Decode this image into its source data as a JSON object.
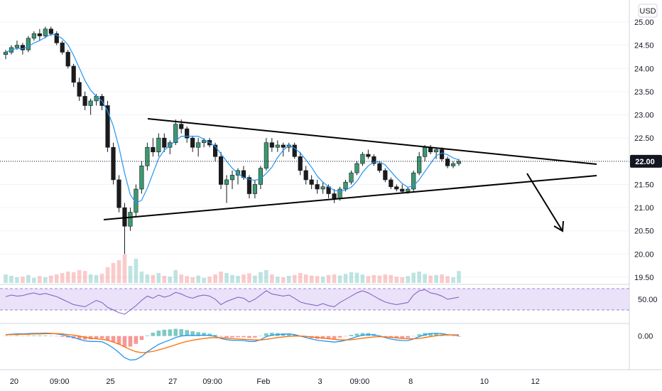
{
  "currency_label": "USD",
  "colors": {
    "up": "#26a69a",
    "down": "#ef5350",
    "sma": "#2196f3",
    "rsi_line": "#7e57c2",
    "rsi_band": "#e1d5f5",
    "macd_line": "#2196f3",
    "signal_line": "#ff6d00",
    "hist_up": "#26a69a",
    "hist_down": "#ef5350",
    "grid": "#f0f3fa",
    "axis": "#d1d4dc",
    "trendline": "#000000",
    "price_tag_bg": "#131722"
  },
  "chart_data": [
    {
      "type": "candlestick",
      "title": "",
      "price_axis_ticks": [
        "25.00",
        "24.50",
        "24.00",
        "23.50",
        "23.00",
        "22.50",
        "22.00",
        "21.50",
        "21.00",
        "20.50",
        "20.00",
        "19.50"
      ],
      "ylim": [
        19.5,
        25.0
      ],
      "time_axis_labels": [
        "20",
        "09:00",
        "25",
        "27",
        "09:00",
        "Feb",
        "3",
        "09:00",
        "8",
        "10",
        "12"
      ],
      "last_price": "22.00",
      "candles": [
        [
          24.3,
          24.4,
          24.2,
          24.35
        ],
        [
          24.35,
          24.5,
          24.3,
          24.45
        ],
        [
          24.45,
          24.6,
          24.4,
          24.5
        ],
        [
          24.5,
          24.55,
          24.3,
          24.4
        ],
        [
          24.4,
          24.7,
          24.35,
          24.65
        ],
        [
          24.65,
          24.8,
          24.6,
          24.75
        ],
        [
          24.75,
          24.85,
          24.6,
          24.7
        ],
        [
          24.7,
          24.9,
          24.65,
          24.85
        ],
        [
          24.85,
          24.9,
          24.7,
          24.75
        ],
        [
          24.75,
          24.8,
          24.5,
          24.55
        ],
        [
          24.55,
          24.6,
          24.3,
          24.35
        ],
        [
          24.35,
          24.4,
          24.0,
          24.05
        ],
        [
          24.05,
          24.1,
          23.6,
          23.7
        ],
        [
          23.7,
          23.8,
          23.3,
          23.4
        ],
        [
          23.4,
          23.5,
          23.1,
          23.2
        ],
        [
          23.2,
          23.35,
          23.0,
          23.3
        ],
        [
          23.3,
          23.45,
          23.2,
          23.4
        ],
        [
          23.4,
          23.45,
          23.1,
          23.2
        ],
        [
          23.2,
          23.3,
          22.2,
          22.3
        ],
        [
          22.3,
          22.4,
          21.5,
          21.6
        ],
        [
          21.6,
          21.7,
          20.9,
          21.0
        ],
        [
          21.0,
          21.1,
          20.0,
          20.6
        ],
        [
          20.6,
          21.0,
          20.5,
          20.9
        ],
        [
          20.9,
          21.5,
          20.8,
          21.4
        ],
        [
          21.4,
          22.0,
          21.3,
          21.9
        ],
        [
          21.9,
          22.4,
          21.8,
          22.3
        ],
        [
          22.3,
          22.5,
          22.1,
          22.2
        ],
        [
          22.2,
          22.6,
          22.1,
          22.5
        ],
        [
          22.5,
          22.6,
          22.2,
          22.3
        ],
        [
          22.3,
          22.45,
          22.15,
          22.4
        ],
        [
          22.4,
          22.9,
          22.35,
          22.8
        ],
        [
          22.8,
          22.9,
          22.6,
          22.7
        ],
        [
          22.7,
          22.75,
          22.4,
          22.5
        ],
        [
          22.5,
          22.55,
          22.2,
          22.3
        ],
        [
          22.3,
          22.5,
          22.1,
          22.4
        ],
        [
          22.4,
          22.5,
          22.3,
          22.45
        ],
        [
          22.45,
          22.5,
          22.3,
          22.35
        ],
        [
          22.35,
          22.4,
          22.0,
          22.1
        ],
        [
          22.1,
          22.2,
          21.4,
          21.5
        ],
        [
          21.5,
          21.7,
          21.1,
          21.6
        ],
        [
          21.6,
          21.8,
          21.4,
          21.7
        ],
        [
          21.7,
          21.85,
          21.5,
          21.8
        ],
        [
          21.8,
          21.9,
          21.6,
          21.65
        ],
        [
          21.65,
          21.7,
          21.2,
          21.3
        ],
        [
          21.3,
          21.6,
          21.2,
          21.5
        ],
        [
          21.5,
          21.9,
          21.4,
          21.85
        ],
        [
          21.85,
          22.5,
          21.8,
          22.4
        ],
        [
          22.4,
          22.5,
          22.2,
          22.3
        ],
        [
          22.3,
          22.45,
          22.2,
          22.35
        ],
        [
          22.35,
          22.4,
          22.1,
          22.3
        ],
        [
          22.3,
          22.4,
          22.2,
          22.35
        ],
        [
          22.35,
          22.4,
          22.05,
          22.1
        ],
        [
          22.1,
          22.2,
          21.7,
          21.8
        ],
        [
          21.8,
          21.9,
          21.5,
          21.6
        ],
        [
          21.6,
          21.7,
          21.4,
          21.5
        ],
        [
          21.5,
          21.6,
          21.3,
          21.4
        ],
        [
          21.4,
          21.55,
          21.3,
          21.45
        ],
        [
          21.45,
          21.5,
          21.2,
          21.3
        ],
        [
          21.3,
          21.4,
          21.1,
          21.2
        ],
        [
          21.2,
          21.45,
          21.15,
          21.4
        ],
        [
          21.4,
          21.6,
          21.35,
          21.55
        ],
        [
          21.55,
          21.8,
          21.5,
          21.75
        ],
        [
          21.75,
          22.0,
          21.7,
          21.95
        ],
        [
          21.95,
          22.2,
          21.9,
          22.15
        ],
        [
          22.15,
          22.25,
          22.05,
          22.1
        ],
        [
          22.1,
          22.15,
          21.9,
          21.95
        ],
        [
          21.95,
          22.0,
          21.75,
          21.8
        ],
        [
          21.8,
          21.85,
          21.55,
          21.6
        ],
        [
          21.6,
          21.65,
          21.4,
          21.45
        ],
        [
          21.45,
          21.5,
          21.35,
          21.4
        ],
        [
          21.4,
          21.5,
          21.3,
          21.35
        ],
        [
          21.35,
          21.45,
          21.3,
          21.4
        ],
        [
          21.4,
          21.8,
          21.35,
          21.75
        ],
        [
          21.75,
          22.2,
          21.7,
          22.1
        ],
        [
          22.1,
          22.35,
          22.0,
          22.3
        ],
        [
          22.3,
          22.35,
          22.15,
          22.2
        ],
        [
          22.2,
          22.3,
          22.05,
          22.25
        ],
        [
          22.25,
          22.3,
          22.0,
          22.05
        ],
        [
          22.05,
          22.1,
          21.85,
          21.9
        ],
        [
          21.9,
          22.0,
          21.85,
          21.95
        ],
        [
          21.95,
          22.05,
          21.9,
          22.0
        ]
      ],
      "volume": [
        30,
        25,
        20,
        22,
        28,
        18,
        24,
        20,
        26,
        30,
        35,
        40,
        38,
        45,
        42,
        30,
        28,
        32,
        55,
        70,
        80,
        100,
        60,
        85,
        40,
        30,
        28,
        35,
        25,
        22,
        45,
        30,
        24,
        20,
        26,
        18,
        22,
        30,
        40,
        35,
        28,
        25,
        30,
        34,
        26,
        38,
        45,
        30,
        22,
        20,
        25,
        28,
        35,
        30,
        26,
        24,
        22,
        28,
        30,
        26,
        32,
        38,
        36,
        30,
        24,
        28,
        26,
        30,
        28,
        22,
        20,
        24,
        36,
        40,
        32,
        26,
        28,
        30,
        24,
        20,
        42
      ]
    },
    {
      "type": "line",
      "title": "",
      "indicator": "RSI",
      "ticks": [
        "50.00"
      ],
      "ylim": [
        0,
        100
      ],
      "band": [
        30,
        70
      ],
      "series": [
        {
          "values": [
            55,
            58,
            56,
            57,
            60,
            62,
            59,
            61,
            58,
            55,
            50,
            45,
            40,
            38,
            36,
            42,
            48,
            44,
            35,
            30,
            25,
            22,
            30,
            38,
            48,
            56,
            52,
            58,
            54,
            57,
            63,
            60,
            55,
            52,
            56,
            58,
            56,
            50,
            40,
            46,
            50,
            54,
            52,
            45,
            50,
            58,
            66,
            60,
            58,
            56,
            58,
            52,
            45,
            42,
            40,
            38,
            42,
            38,
            36,
            44,
            50,
            56,
            62,
            66,
            62,
            56,
            50,
            45,
            42,
            40,
            42,
            44,
            58,
            66,
            68,
            62,
            60,
            56,
            50,
            52,
            54
          ]
        }
      ]
    },
    {
      "type": "line",
      "title": "",
      "indicator": "MACD",
      "ticks": [
        "0.00"
      ],
      "ylim": [
        -1.0,
        0.3
      ],
      "series": [
        {
          "values": [
            0.05,
            0.06,
            0.07,
            0.07,
            0.08,
            0.09,
            0.09,
            0.1,
            0.09,
            0.07,
            0.04,
            0.0,
            -0.05,
            -0.11,
            -0.16,
            -0.18,
            -0.18,
            -0.19,
            -0.28,
            -0.4,
            -0.55,
            -0.72,
            -0.8,
            -0.78,
            -0.68,
            -0.52,
            -0.4,
            -0.28,
            -0.2,
            -0.13,
            -0.05,
            0.0,
            0.02,
            0.02,
            0.02,
            0.03,
            0.02,
            -0.01,
            -0.08,
            -0.12,
            -0.14,
            -0.14,
            -0.15,
            -0.18,
            -0.18,
            -0.12,
            -0.02,
            0.03,
            0.05,
            0.06,
            0.07,
            0.05,
            0.0,
            -0.05,
            -0.1,
            -0.14,
            -0.16,
            -0.18,
            -0.2,
            -0.18,
            -0.14,
            -0.08,
            -0.02,
            0.03,
            0.05,
            0.04,
            0.0,
            -0.05,
            -0.1,
            -0.13,
            -0.15,
            -0.15,
            -0.1,
            -0.02,
            0.05,
            0.08,
            0.09,
            0.08,
            0.05,
            0.03,
            0.02
          ]
        },
        {
          "values": [
            0.04,
            0.05,
            0.05,
            0.06,
            0.06,
            0.07,
            0.07,
            0.08,
            0.08,
            0.08,
            0.07,
            0.05,
            0.03,
            0.0,
            -0.04,
            -0.07,
            -0.09,
            -0.11,
            -0.14,
            -0.2,
            -0.27,
            -0.36,
            -0.45,
            -0.52,
            -0.55,
            -0.54,
            -0.51,
            -0.46,
            -0.41,
            -0.35,
            -0.29,
            -0.23,
            -0.18,
            -0.14,
            -0.11,
            -0.08,
            -0.06,
            -0.05,
            -0.06,
            -0.07,
            -0.09,
            -0.1,
            -0.11,
            -0.12,
            -0.13,
            -0.13,
            -0.11,
            -0.08,
            -0.05,
            -0.03,
            -0.01,
            0.0,
            0.0,
            -0.01,
            -0.03,
            -0.05,
            -0.07,
            -0.09,
            -0.11,
            -0.13,
            -0.13,
            -0.12,
            -0.1,
            -0.07,
            -0.05,
            -0.03,
            -0.02,
            -0.03,
            -0.04,
            -0.06,
            -0.08,
            -0.09,
            -0.09,
            -0.08,
            -0.05,
            -0.02,
            0.01,
            0.03,
            0.04,
            0.04,
            0.04
          ]
        }
      ]
    }
  ]
}
